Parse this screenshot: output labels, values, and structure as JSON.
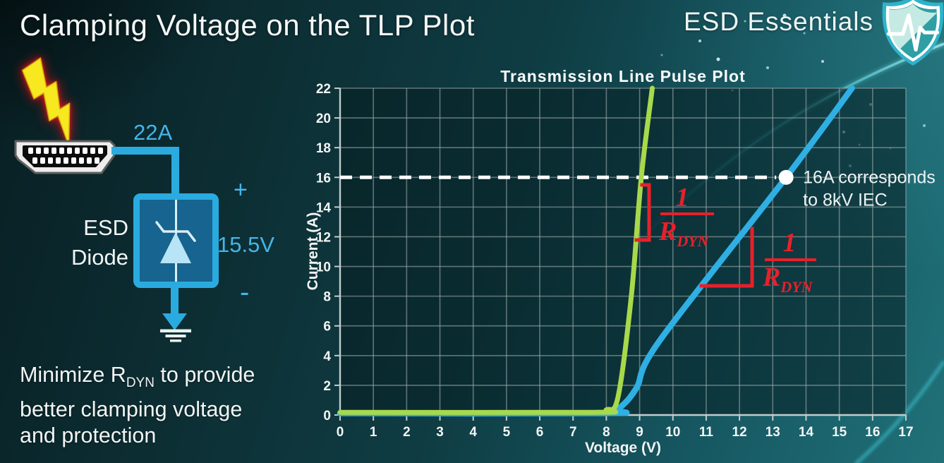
{
  "slide": {
    "title": "Clamping Voltage on the TLP Plot",
    "brand": "ESD Essentials"
  },
  "icons": {
    "brand": "shield-pulse-icon",
    "surge": "lightning-bolt-icon",
    "connector": "hdmi-connector-icon",
    "diode": "zener-diode-symbol",
    "ground": "ground-symbol"
  },
  "diagram": {
    "surge_current": "22A",
    "polarity_plus": "+",
    "clamp_voltage": "15.5V",
    "polarity_minus": "-",
    "component_label": [
      "ESD",
      "Diode"
    ]
  },
  "footer": {
    "line1_pre": "Minimize R",
    "line1_sub": "DYN",
    "line1_post": " to provide",
    "line2": "better clamping voltage",
    "line3": "and protection"
  },
  "colors": {
    "accent_cyan": "#2aabe0",
    "label_cyan": "#45b5e8",
    "bolt_yellow": "#f8e81f",
    "bolt_glow_red": "#d01014",
    "green_curve": "#a8d94b",
    "blue_curve": "#2fafe3",
    "annotation_red": "#e8202a"
  },
  "chart_data": {
    "type": "line",
    "title": "Transmission Line Pulse Plot",
    "xlabel": "Voltage (V)",
    "ylabel": "Current (A)",
    "xlim": [
      0,
      17
    ],
    "ylim": [
      0,
      22
    ],
    "x_ticks": [
      0,
      1,
      2,
      3,
      4,
      5,
      6,
      7,
      8,
      9,
      10,
      11,
      12,
      13,
      14,
      15,
      16,
      17
    ],
    "y_ticks": [
      0,
      2,
      4,
      6,
      8,
      10,
      12,
      14,
      16,
      18,
      20,
      22
    ],
    "grid": true,
    "legend": "none",
    "series": [
      {
        "id": "blue-curve",
        "color": "#2fafe3",
        "points": [
          [
            0,
            0.12
          ],
          [
            7.9,
            0.12
          ],
          [
            8.35,
            0.4
          ],
          [
            8.9,
            1.8
          ],
          [
            9.6,
            5
          ],
          [
            13.4,
            16
          ],
          [
            15.38,
            22
          ]
        ]
      },
      {
        "id": "green-curve",
        "color": "#a8d94b",
        "points": [
          [
            0,
            0.18
          ],
          [
            7.6,
            0.18
          ],
          [
            8.0,
            0.35
          ],
          [
            8.35,
            1.2
          ],
          [
            8.75,
            8
          ],
          [
            9.05,
            16
          ],
          [
            9.38,
            22
          ]
        ]
      }
    ],
    "reference_line": {
      "y": 16,
      "x_start": 0,
      "x_end": 13.4,
      "style": "dashed",
      "color": "#ffffff"
    },
    "marker": {
      "x": 13.4,
      "y": 16,
      "labels": [
        "16A corresponds",
        "to 8kV IEC"
      ]
    },
    "annotations": [
      {
        "id": "green-slope-annotation",
        "num": "1",
        "den": "R",
        "den_sub": "DYN"
      },
      {
        "id": "blue-slope-annotation",
        "num": "1",
        "den": "R",
        "den_sub": "DYN"
      }
    ],
    "colors": {
      "grid": "#9aa7a8",
      "axis": "#c2cccd",
      "plot_bg": "#061e21",
      "annotation": "#e8202a"
    }
  }
}
